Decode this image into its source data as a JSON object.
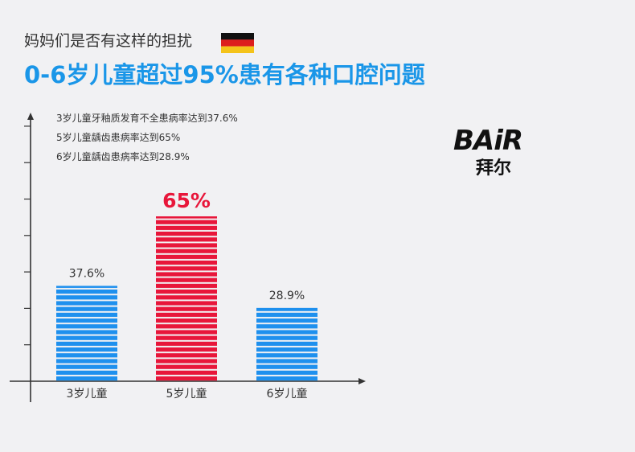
{
  "header": {
    "subtitle": "妈妈们是否有这样的担扰",
    "title": "0-6岁儿童超过95%患有各种口腔问题"
  },
  "logo": {
    "text": "BAiR",
    "chinese": "拜尔"
  },
  "colors": {
    "title": "#1a96e8",
    "bar_blue": "#1e90ee",
    "bar_red": "#e8163a",
    "axis": "#333333",
    "background": "#f1f1f3"
  },
  "chart_data": {
    "type": "bar",
    "categories": [
      "3岁儿童",
      "5岁儿童",
      "6岁儿童"
    ],
    "values": [
      37.6,
      65,
      28.9
    ],
    "value_labels": [
      "37.6%",
      "65%",
      "28.9%"
    ],
    "highlight_index": 1,
    "ylim": [
      0,
      100
    ],
    "annotations": [
      "3岁儿童牙釉质发育不全患病率达到37.6%",
      "5岁儿童龋齿患病率达到65%",
      "6岁儿童龋齿患病率达到28.9%"
    ]
  }
}
